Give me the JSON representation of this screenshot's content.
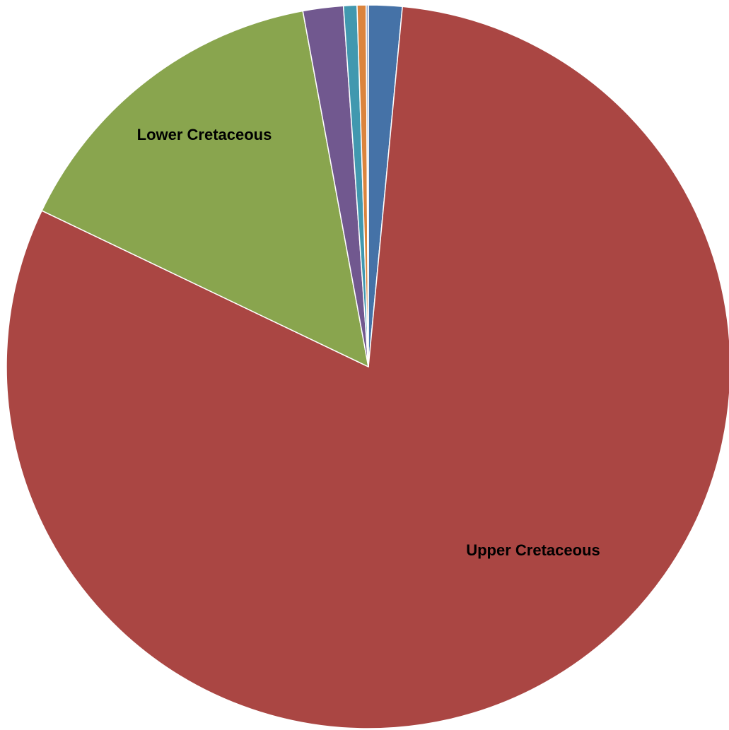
{
  "chart_data": {
    "type": "pie",
    "title": "",
    "start_angle_deg": 0,
    "direction": "clockwise",
    "slices": [
      {
        "label": "",
        "value": 1.5,
        "color": "#4572A7"
      },
      {
        "label": "Upper Cretaceous",
        "value": 80.6,
        "color": "#AA4643"
      },
      {
        "label": "Lower Cretaceous",
        "value": 15.0,
        "color": "#89A54E"
      },
      {
        "label": "",
        "value": 1.8,
        "color": "#71588F"
      },
      {
        "label": "",
        "value": 0.6,
        "color": "#4198AF"
      },
      {
        "label": "",
        "value": 0.4,
        "color": "#DB843D"
      },
      {
        "label": "",
        "value": 0.1,
        "color": "#93A9CF"
      }
    ],
    "data_labels": [
      "Upper Cretaceous",
      "Lower Cretaceous"
    ]
  }
}
